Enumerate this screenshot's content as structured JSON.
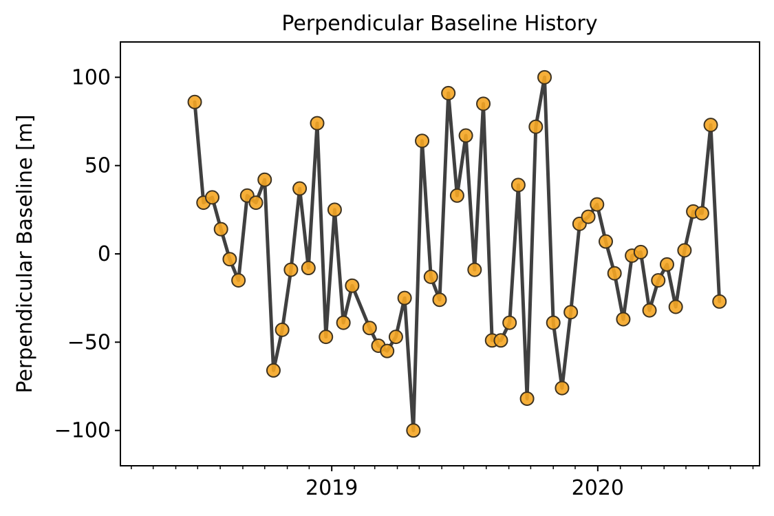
{
  "chart_data": {
    "type": "line",
    "title": "Perpendicular Baseline History",
    "xlabel": "",
    "ylabel": "Perpendicular Baseline [m]",
    "xlim": [
      "2018-03-17",
      "2020-08-10"
    ],
    "ylim": [
      -120,
      120
    ],
    "x_ticks": [
      "2019",
      "2020"
    ],
    "y_ticks": [
      -100,
      -50,
      0,
      50,
      100
    ],
    "y_tick_labels": [
      "−100",
      "−50",
      "0",
      "50",
      "100"
    ],
    "grid": false,
    "legend": "none",
    "marker_color": "#f5a623",
    "line_color": "#404040",
    "series": [
      {
        "x": [
          "2018-06-27",
          "2018-07-09",
          "2018-07-21",
          "2018-08-02",
          "2018-08-14",
          "2018-08-26",
          "2018-09-07",
          "2018-09-19",
          "2018-10-01",
          "2018-10-13",
          "2018-10-25",
          "2018-11-06",
          "2018-11-18",
          "2018-11-30",
          "2018-12-12",
          "2018-12-24",
          "2019-01-05",
          "2019-01-17",
          "2019-01-29",
          "2019-02-22",
          "2019-03-06",
          "2019-03-18",
          "2019-03-30",
          "2019-04-11",
          "2019-04-23",
          "2019-05-05",
          "2019-05-17",
          "2019-05-29",
          "2019-06-10",
          "2019-06-22",
          "2019-07-04",
          "2019-07-16",
          "2019-07-28",
          "2019-08-09",
          "2019-08-21",
          "2019-09-02",
          "2019-09-14",
          "2019-09-26",
          "2019-10-08",
          "2019-10-20",
          "2019-11-01",
          "2019-11-13",
          "2019-11-25",
          "2019-12-07",
          "2019-12-19",
          "2019-12-31",
          "2020-01-12",
          "2020-01-24",
          "2020-02-05",
          "2020-02-17",
          "2020-02-29",
          "2020-03-12",
          "2020-03-24",
          "2020-04-05",
          "2020-04-17",
          "2020-04-29",
          "2020-05-11",
          "2020-05-23",
          "2020-06-04",
          "2020-06-16"
        ],
        "values": [
          86,
          29,
          32,
          14,
          -3,
          -15,
          33,
          29,
          42,
          -66,
          -43,
          -9,
          37,
          -8,
          74,
          -47,
          25,
          -39,
          -18,
          -42,
          -52,
          -55,
          -47,
          -25,
          -100,
          64,
          -13,
          -26,
          91,
          33,
          67,
          -9,
          85,
          -49,
          -49,
          -39,
          39,
          -82,
          72,
          100,
          -39,
          -76,
          -33,
          17,
          21,
          28,
          7,
          -11,
          -37,
          -1,
          1,
          -32,
          -15,
          -6,
          -30,
          2,
          24,
          23,
          73,
          -27
        ]
      }
    ]
  }
}
